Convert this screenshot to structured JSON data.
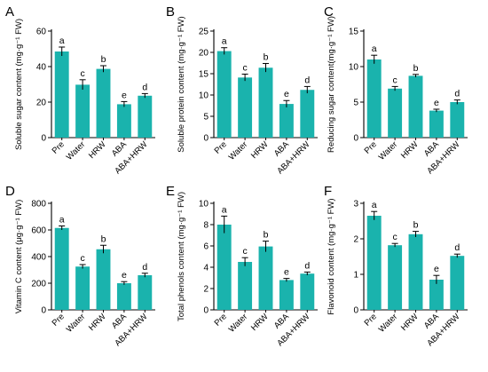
{
  "figure": {
    "colors": {
      "bar": "#1ab3ad",
      "axis": "#000000",
      "text": "#000000"
    }
  },
  "chart_data": [
    {
      "panel": "A",
      "type": "bar",
      "ylabel": "Soluble sugar content (mg·g⁻¹ FW)",
      "categories": [
        "Pre",
        "Water",
        "HRW",
        "ABA",
        "ABA+HRW"
      ],
      "values": [
        48.5,
        29.8,
        38.7,
        18.8,
        23.6
      ],
      "errors": [
        2.5,
        2.8,
        1.8,
        1.5,
        1.2
      ],
      "letters": [
        "a",
        "c",
        "b",
        "e",
        "d"
      ],
      "ylim": [
        0,
        60
      ],
      "yticks": [
        0,
        20,
        40,
        60
      ]
    },
    {
      "panel": "B",
      "type": "bar",
      "ylabel": "Soluble protein content (mg·g⁻¹ FW)",
      "categories": [
        "Pre",
        "Water",
        "HRW",
        "ABA",
        "ABA+HRW"
      ],
      "values": [
        20.3,
        14.1,
        16.4,
        7.9,
        11.2
      ],
      "errors": [
        0.8,
        0.8,
        1.0,
        0.8,
        0.8
      ],
      "letters": [
        "a",
        "c",
        "b",
        "e",
        "d"
      ],
      "ylim": [
        0,
        25
      ],
      "yticks": [
        0,
        5,
        10,
        15,
        20,
        25
      ]
    },
    {
      "panel": "C",
      "type": "bar",
      "ylabel": "Reducing sugar content(mg·g⁻¹ FW)",
      "categories": [
        "Pre",
        "Water",
        "HRW",
        "ABA",
        "ABA+HRW"
      ],
      "values": [
        11.0,
        6.9,
        8.7,
        3.8,
        5.0
      ],
      "errors": [
        0.6,
        0.3,
        0.2,
        0.2,
        0.3
      ],
      "letters": [
        "a",
        "c",
        "b",
        "e",
        "d"
      ],
      "ylim": [
        0,
        15
      ],
      "yticks": [
        0,
        5,
        10,
        15
      ]
    },
    {
      "panel": "D",
      "type": "bar",
      "ylabel": "Vitamin C content (μg·g⁻¹ FW)",
      "categories": [
        "Pre",
        "Water",
        "HRW",
        "ABA",
        "ABA+HRW"
      ],
      "values": [
        615,
        325,
        455,
        200,
        260
      ],
      "errors": [
        15,
        15,
        30,
        12,
        15
      ],
      "letters": [
        "a",
        "c",
        "b",
        "e",
        "d"
      ],
      "ylim": [
        0,
        800
      ],
      "yticks": [
        0,
        200,
        400,
        600,
        800
      ]
    },
    {
      "panel": "E",
      "type": "bar",
      "ylabel": "Total phenols content (mg·g⁻¹ FW)",
      "categories": [
        "Pre",
        "Water",
        "HRW",
        "ABA",
        "ABA+HRW"
      ],
      "values": [
        8.0,
        4.5,
        5.95,
        2.8,
        3.4
      ],
      "errors": [
        0.8,
        0.4,
        0.5,
        0.15,
        0.15
      ],
      "letters": [
        "a",
        "c",
        "b",
        "e",
        "d"
      ],
      "ylim": [
        0,
        10
      ],
      "yticks": [
        0,
        2,
        4,
        6,
        8,
        10
      ]
    },
    {
      "panel": "F",
      "type": "bar",
      "ylabel": "Flavonoid content (mg·g⁻¹ FW)",
      "categories": [
        "Pre",
        "Water",
        "HRW",
        "ABA",
        "ABA+HRW"
      ],
      "values": [
        2.65,
        1.82,
        2.13,
        0.85,
        1.52
      ],
      "errors": [
        0.12,
        0.05,
        0.08,
        0.12,
        0.05
      ],
      "letters": [
        "a",
        "c",
        "b",
        "e",
        "d"
      ],
      "ylim": [
        0,
        3
      ],
      "yticks": [
        0,
        1,
        2,
        3
      ]
    }
  ]
}
